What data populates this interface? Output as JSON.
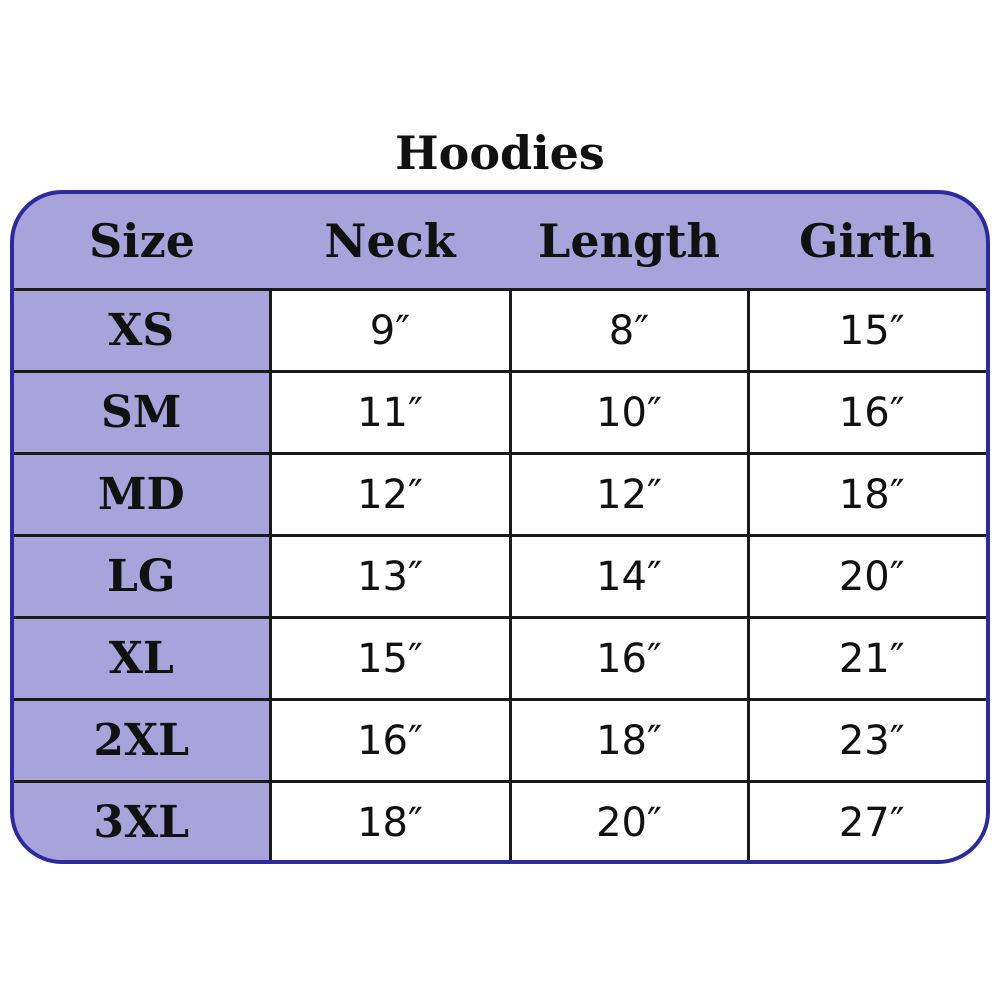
{
  "title": "Hoodies",
  "colors": {
    "header_bg": "#a9a3dc",
    "border": "#2b2b9c"
  },
  "columns": [
    "Size",
    "Neck",
    "Length",
    "Girth"
  ],
  "rows": [
    [
      "XS",
      "9″",
      "8″",
      "15″"
    ],
    [
      "SM",
      "11″",
      "10″",
      "16″"
    ],
    [
      "MD",
      "12″",
      "12″",
      "18″"
    ],
    [
      "LG",
      "13″",
      "14″",
      "20″"
    ],
    [
      "XL",
      "15″",
      "16″",
      "21″"
    ],
    [
      "2XL",
      "16″",
      "18″",
      "23″"
    ],
    [
      "3XL",
      "18″",
      "20″",
      "27″"
    ]
  ]
}
